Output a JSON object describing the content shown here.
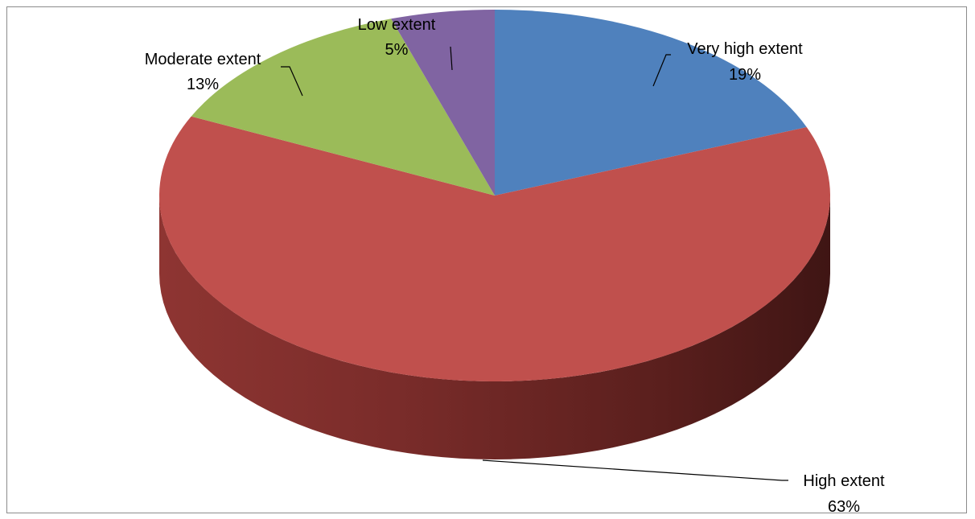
{
  "chart_data": {
    "type": "pie",
    "style": "3d",
    "title": "",
    "slices": [
      {
        "label": "Very high extent",
        "value": 19,
        "value_label": "19%",
        "color": "#4F81BD"
      },
      {
        "label": "High extent",
        "value": 63,
        "value_label": "63%",
        "color": "#C0504D"
      },
      {
        "label": "Moderate extent",
        "value": 13,
        "value_label": "13%",
        "color": "#9BBB59"
      },
      {
        "label": "Low extent",
        "value": 5,
        "value_label": "5%",
        "color": "#8064A2"
      }
    ]
  }
}
